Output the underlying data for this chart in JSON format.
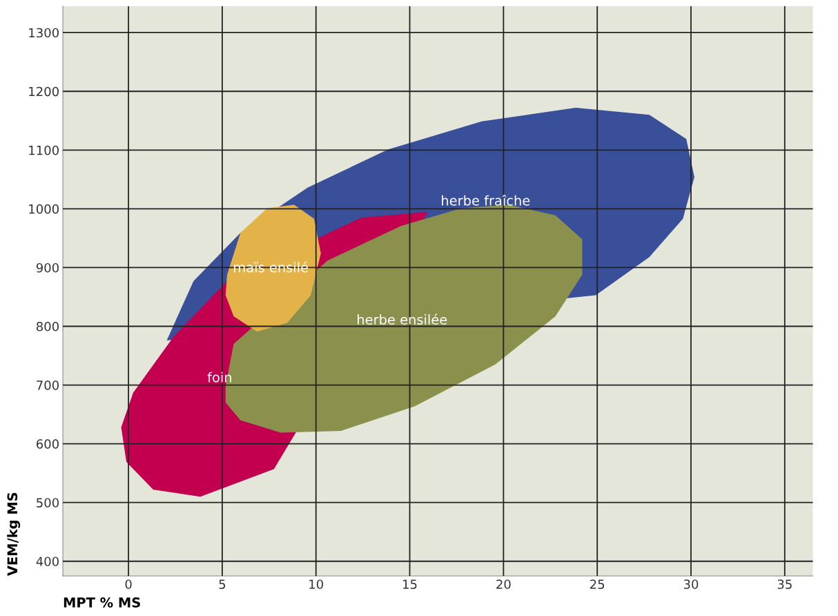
{
  "chart_data": {
    "type": "area",
    "xlabel": "MPT % MS",
    "ylabel": "VEM/kg MS",
    "xlim": [
      -3.5,
      36.5
    ],
    "ylim": [
      375,
      1345
    ],
    "xticks": [
      0,
      5,
      10,
      15,
      20,
      25,
      30,
      35
    ],
    "yticks": [
      400,
      500,
      600,
      700,
      800,
      900,
      1000,
      1100,
      1200,
      1300
    ],
    "grid": true,
    "series": [
      {
        "name": "herbe fraîche",
        "color": "#3a4f9a",
        "x": [
          2.04,
          3.47,
          5.97,
          9.55,
          13.84,
          18.84,
          23.85,
          27.78,
          29.75,
          30.18,
          29.57,
          27.78,
          24.92
        ],
        "values": [
          776,
          877,
          959,
          1036,
          1101,
          1149,
          1172,
          1160,
          1119,
          1054,
          983,
          918,
          853
        ]
      },
      {
        "name": "foin",
        "color": "#c2004f",
        "x": [
          -0.39,
          0.25,
          2.4,
          5.26,
          12.41,
          15.98,
          7.76,
          3.83,
          1.32,
          -0.11
        ],
        "values": [
          628,
          687,
          782,
          877,
          985,
          995,
          557,
          510,
          522,
          569
        ]
      },
      {
        "name": "herbe ensilée",
        "color": "#8b914d",
        "x": [
          5.18,
          5.61,
          10.62,
          14.55,
          17.77,
          20.27,
          22.77,
          24.2,
          24.2,
          22.77,
          19.56,
          15.27,
          11.33,
          8.12,
          5.97,
          5.18
        ],
        "values": [
          699,
          770,
          912,
          971,
          1001,
          1007,
          989,
          948,
          888,
          817,
          735,
          664,
          622,
          619,
          640,
          670
        ]
      },
      {
        "name": "maïs ensilé",
        "color": "#e3b34a",
        "x": [
          5.26,
          5.97,
          7.4,
          8.83,
          9.9,
          10.26,
          9.72,
          8.47,
          6.86,
          5.61,
          5.18
        ],
        "values": [
          888,
          959,
          1001,
          1007,
          983,
          924,
          853,
          806,
          791,
          817,
          853
        ]
      }
    ]
  }
}
